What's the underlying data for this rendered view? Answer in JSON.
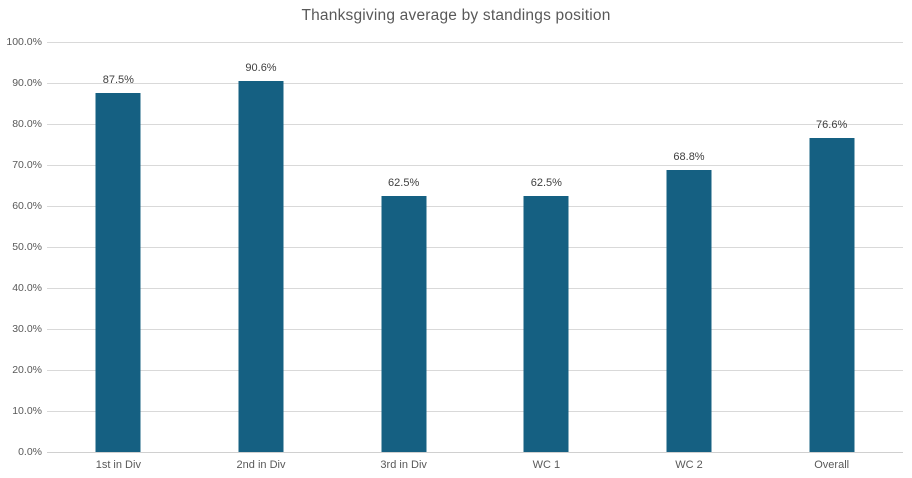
{
  "chart_data": {
    "type": "bar",
    "title": "Thanksgiving average by standings position",
    "categories": [
      "1st in Div",
      "2nd in Div",
      "3rd in Div",
      "WC 1",
      "WC 2",
      "Overall"
    ],
    "values": [
      87.5,
      90.6,
      62.5,
      62.5,
      68.8,
      76.6
    ],
    "value_labels": [
      "87.5%",
      "90.6%",
      "62.5%",
      "62.5%",
      "68.8%",
      "76.6%"
    ],
    "xlabel": "",
    "ylabel": "",
    "ylim": [
      0,
      100
    ],
    "yticks": [
      0,
      10,
      20,
      30,
      40,
      50,
      60,
      70,
      80,
      90,
      100
    ],
    "ytick_labels": [
      "0.0%",
      "10.0%",
      "20.0%",
      "30.0%",
      "40.0%",
      "50.0%",
      "60.0%",
      "70.0%",
      "80.0%",
      "90.0%",
      "100.0%"
    ],
    "grid": "horizontal",
    "legend": "none",
    "colors": {
      "bar": "#156082",
      "title_text": "#595959",
      "axis_text": "#595959",
      "data_label_text": "#404040",
      "gridline": "#d9d9d9"
    }
  }
}
